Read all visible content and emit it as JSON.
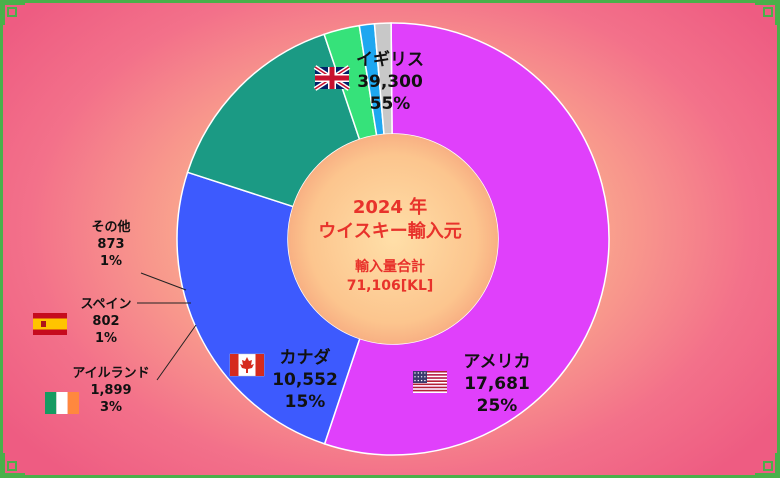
{
  "chart_data": {
    "type": "pie",
    "variant": "donut",
    "title_line1": "2024 年",
    "title_line2": "ウイスキー輸入元",
    "total_label": "輸入量合計",
    "total_value": "71,106[KL]",
    "slices": [
      {
        "name": "イギリス",
        "value": 39300,
        "value_label": "39,300",
        "percent_label": "55%",
        "color": "#e040fb",
        "flag": "uk-flag-icon"
      },
      {
        "name": "アメリカ",
        "value": 17681,
        "value_label": "17,681",
        "percent_label": "25%",
        "color": "#3d5afe",
        "flag": "us-flag-icon"
      },
      {
        "name": "カナダ",
        "value": 10552,
        "value_label": "10,552",
        "percent_label": "15%",
        "color": "#1b9a84",
        "flag": "canada-flag-icon"
      },
      {
        "name": "アイルランド",
        "value": 1899,
        "value_label": "1,899",
        "percent_label": "3%",
        "color": "#36e27a",
        "flag": "ireland-flag-icon"
      },
      {
        "name": "スペイン",
        "value": 802,
        "value_label": "802",
        "percent_label": "1%",
        "color": "#1ea7f0",
        "flag": "spain-flag-icon"
      },
      {
        "name": "その他",
        "value": 873,
        "value_label": "873",
        "percent_label": "1%",
        "color": "#c8c8c8",
        "flag": ""
      }
    ]
  }
}
